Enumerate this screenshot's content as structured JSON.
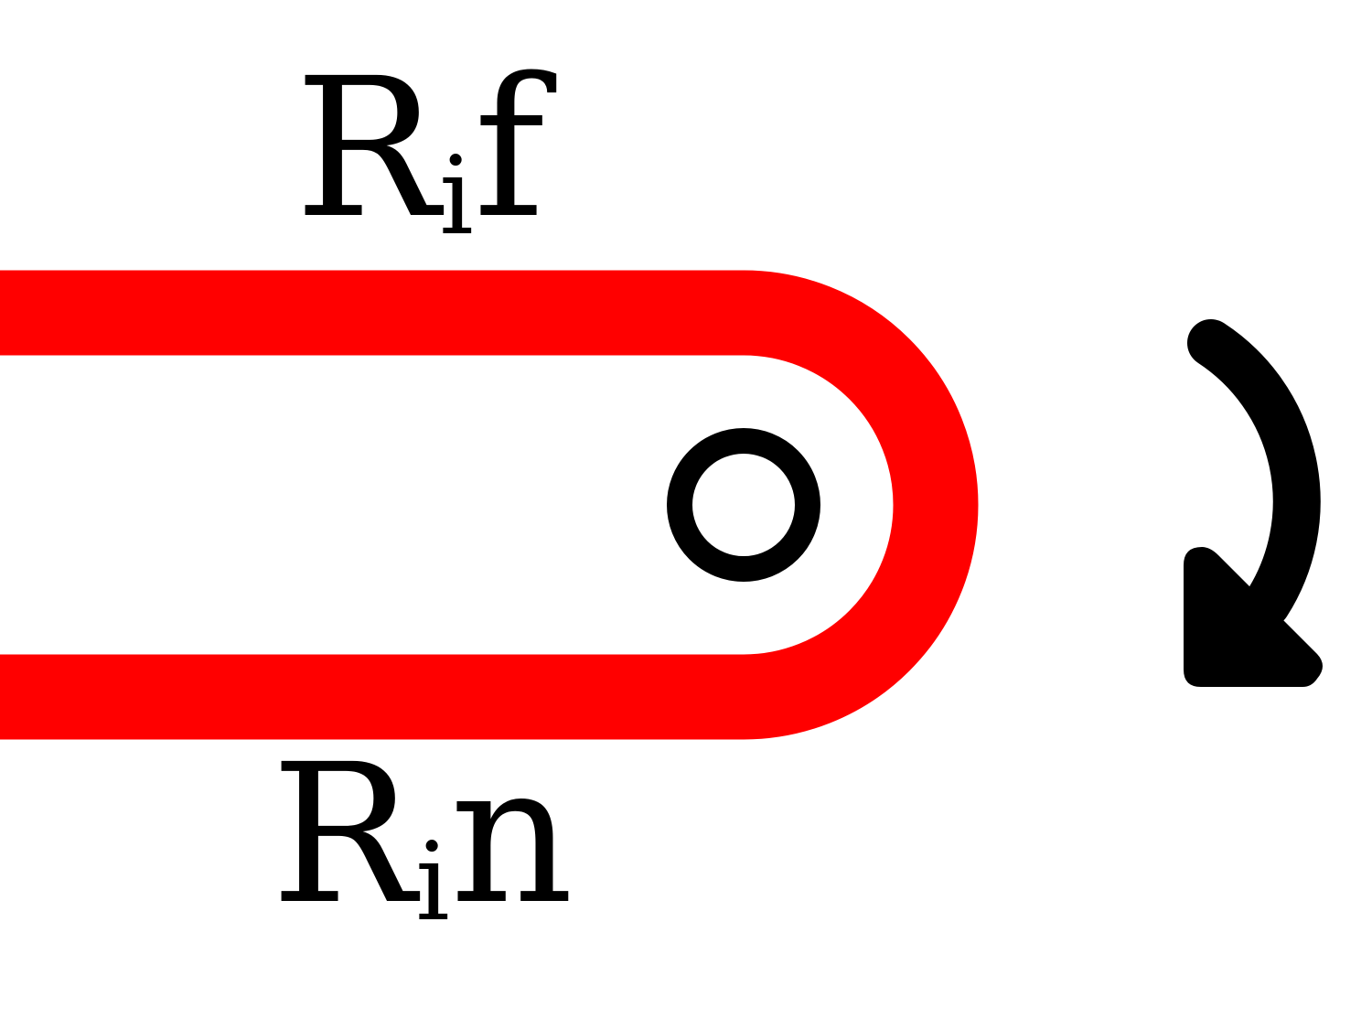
{
  "diagram": {
    "top_label": {
      "base": "R",
      "subscript": "i",
      "suffix": "f"
    },
    "bottom_label": {
      "base": "R",
      "subscript": "i",
      "suffix": "n"
    },
    "pivot_symbol": "pivot-circle",
    "rotation_symbol": "clockwise-arrow-icon"
  },
  "colors": {
    "band": "#ff0000",
    "ink": "#000000",
    "background": "#ffffff"
  }
}
